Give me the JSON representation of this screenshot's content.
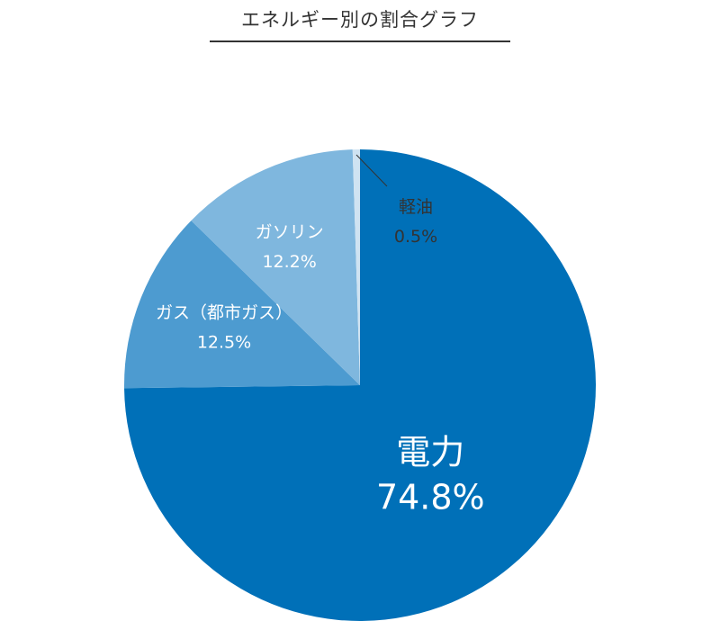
{
  "title": "エネルギー別の割合グラフ",
  "chart_data": {
    "type": "pie",
    "title": "エネルギー別の割合グラフ",
    "start": "12 o'clock, clockwise",
    "slices": [
      {
        "label": "電力",
        "value": 74.8,
        "value_label": "74.8%",
        "color": "#0070b8"
      },
      {
        "label": "ガス（都市ガス）",
        "value": 12.5,
        "value_label": "12.5%",
        "color": "#4d9bd0"
      },
      {
        "label": "ガソリン",
        "value": 12.2,
        "value_label": "12.2%",
        "color": "#7fb7de"
      },
      {
        "label": "軽油",
        "value": 0.5,
        "value_label": "0.5%",
        "color": "#cfe3f2"
      }
    ]
  }
}
